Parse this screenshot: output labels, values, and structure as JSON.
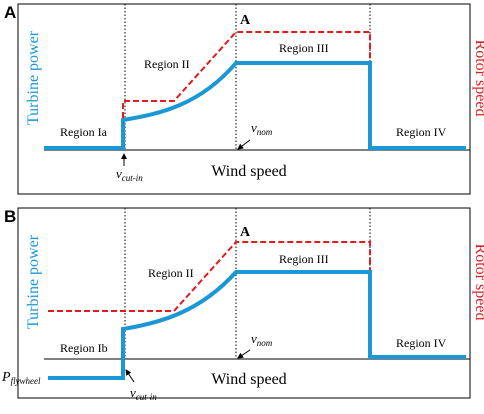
{
  "colors": {
    "turbine": "#1a97d4",
    "rotor": "#e41a1c",
    "axis": "#000000"
  },
  "panels": [
    {
      "letter": "A",
      "ylabel_left": "Turbine power",
      "ylabel_right": "Rotor speed",
      "xlabel": "Wind speed",
      "regions": [
        "Region Ia",
        "Region II",
        "Region III",
        "Region IV"
      ],
      "peak_marker": "A",
      "v_cut_in": {
        "base": "v",
        "sub": "cut-in"
      },
      "v_nom": {
        "base": "v",
        "sub": "nom"
      }
    },
    {
      "letter": "B",
      "ylabel_left": "Turbine power",
      "ylabel_right": "Rotor speed",
      "xlabel": "Wind speed",
      "regions": [
        "Region Ib",
        "Region II",
        "Region III",
        "Region IV"
      ],
      "peak_marker": "A",
      "v_cut_in": {
        "base": "v",
        "sub": "cut-in"
      },
      "v_nom": {
        "base": "v",
        "sub": "nom"
      },
      "flywheel_label": {
        "base": "P",
        "sub": "flywheel"
      }
    }
  ]
}
